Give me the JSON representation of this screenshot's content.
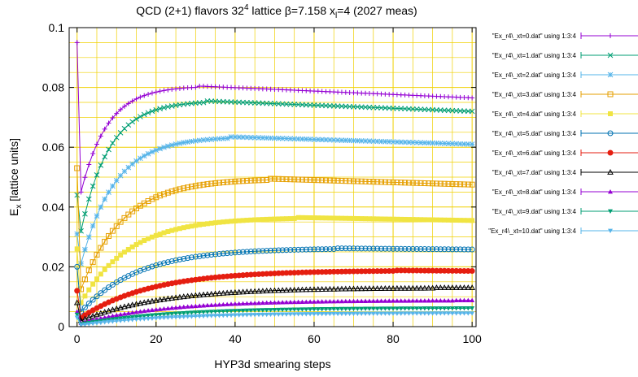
{
  "chart_data": {
    "type": "line",
    "title": {
      "prefix": "QCD (2+1) flavors 32",
      "sup": "4",
      "middle": " lattice β=7.158 x",
      "sub": "l",
      "suffix": "=4 (2027 meas)"
    },
    "xlabel": "HYP3d smearing steps",
    "ylabel": {
      "main": "E",
      "sub": "x",
      "rest": " [lattice units]"
    },
    "xlim": [
      -2,
      101
    ],
    "ylim": [
      0,
      0.1
    ],
    "xticks": [
      0,
      20,
      40,
      60,
      80,
      100
    ],
    "yticks": [
      0,
      0.02,
      0.04,
      0.06,
      0.08,
      0.1
    ],
    "ytick_labels": [
      "0",
      "0.02",
      "0.04",
      "0.06",
      "0.08",
      "0.1"
    ],
    "grid": true,
    "grid_color": "#f0d000",
    "legend_position": "right",
    "series": [
      {
        "name": "\"Ex_r4\\_xt=0.dat\" using 1:3:4",
        "color": "#9400d3",
        "marker": "plus",
        "start": 0.095,
        "v1": 0.045,
        "peak": 0.0805,
        "peak_x": 30,
        "end": 0.0765
      },
      {
        "name": "\"Ex_r4\\_xt=1.dat\" using 1:3:4",
        "color": "#009e73",
        "marker": "cross",
        "start": 0.044,
        "v1": 0.032,
        "peak": 0.0755,
        "peak_x": 32,
        "end": 0.072
      },
      {
        "name": "\"Ex_r4\\_xt=2.dat\" using 1:3:4",
        "color": "#56b4e9",
        "marker": "star",
        "start": 0.031,
        "v1": 0.021,
        "peak": 0.0635,
        "peak_x": 38,
        "end": 0.061
      },
      {
        "name": "\"Ex_r4\\_xt=3.dat\" using 1:3:4",
        "color": "#e69f00",
        "marker": "square",
        "start": 0.053,
        "v1": 0.0125,
        "peak": 0.0495,
        "peak_x": 48,
        "end": 0.0475
      },
      {
        "name": "\"Ex_r4\\_xt=4.dat\" using 1:3:4",
        "color": "#f0e442",
        "marker": "fsquare",
        "start": 0.026,
        "v1": 0.008,
        "peak": 0.0365,
        "peak_x": 55,
        "end": 0.0355
      },
      {
        "name": "\"Ex_r4\\_xt=5.dat\" using 1:3:4",
        "color": "#0072b2",
        "marker": "circle",
        "start": 0.02,
        "v1": 0.005,
        "peak": 0.0262,
        "peak_x": 65,
        "end": 0.0258
      },
      {
        "name": "\"Ex_r4\\_xt=6.dat\" using 1:3:4",
        "color": "#e51e10",
        "marker": "fcircle",
        "start": 0.012,
        "v1": 0.003,
        "peak": 0.0188,
        "peak_x": 80,
        "end": 0.0186
      },
      {
        "name": "\"Ex_r4\\_xt=7.dat\" using 1:3:4",
        "color": "#000000",
        "marker": "triangle",
        "start": 0.008,
        "v1": 0.002,
        "peak": 0.013,
        "peak_x": 90,
        "end": 0.013
      },
      {
        "name": "\"Ex_r4\\_xt=8.dat\" using 1:3:4",
        "color": "#9400d3",
        "marker": "ftriangle",
        "start": 0.005,
        "v1": 0.0012,
        "peak": 0.0088,
        "peak_x": 95,
        "end": 0.0088
      },
      {
        "name": "\"Ex_r4\\_xt=9.dat\" using 1:3:4",
        "color": "#009e73",
        "marker": "fdtriangle",
        "start": 0.004,
        "v1": 0.0008,
        "peak": 0.0062,
        "peak_x": 100,
        "end": 0.0062
      },
      {
        "name": "\"Ex_r4\\_xt=10.dat\" using 1:3:4",
        "color": "#56b4e9",
        "marker": "fdtriangle",
        "start": 0.003,
        "v1": 0.0005,
        "peak": 0.0045,
        "peak_x": 100,
        "end": 0.0045
      }
    ]
  }
}
